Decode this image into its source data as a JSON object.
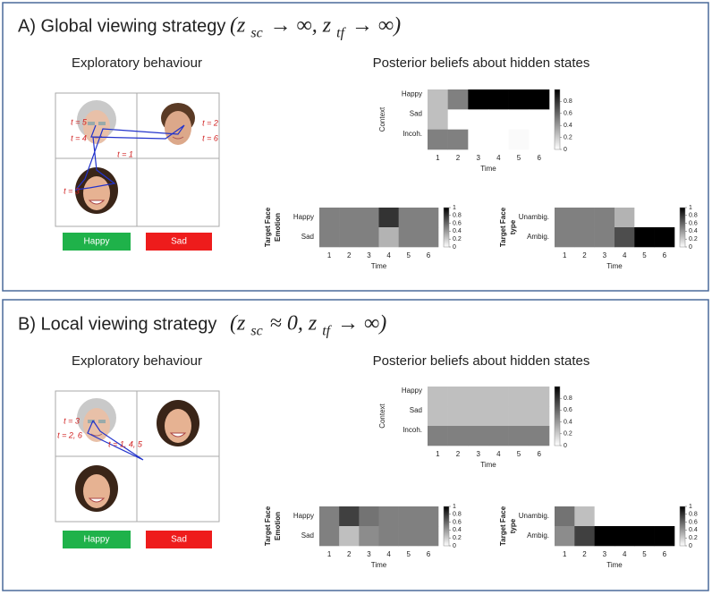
{
  "panels": [
    {
      "title": "A) Global viewing strategy",
      "formula": [
        "(z",
        "sc",
        "→ ∞, z",
        "tf",
        "→ ∞)"
      ],
      "left_heading": "Exploratory behaviour",
      "right_heading": "Posterior beliefs about hidden states",
      "time_labels": [
        "t = 5",
        "t = 4",
        "t = 2",
        "t = 6",
        "t = 1",
        "t = 3"
      ],
      "buttons": [
        "Happy",
        "Sad"
      ]
    },
    {
      "title": "B) Local viewing strategy",
      "formula": [
        "(z",
        "sc",
        "≈ 0, z",
        "tf",
        "→ ∞)"
      ],
      "left_heading": "Exploratory behaviour",
      "right_heading": "Posterior beliefs about hidden states",
      "time_labels": [
        "t = 3",
        "t = 2, 6",
        "t = 1, 4, 5"
      ],
      "buttons": [
        "Happy",
        "Sad"
      ]
    }
  ],
  "chart_data": [
    {
      "type": "heatmap",
      "ylabel": [
        "Context"
      ],
      "xlabel": "Time",
      "categories": [
        1,
        2,
        3,
        4,
        5,
        6
      ],
      "rows": [
        "Happy",
        "Sad",
        "Incoh."
      ],
      "values": [
        [
          0.25,
          0.5,
          1,
          1,
          1,
          1
        ],
        [
          0.25,
          0,
          0,
          0,
          0,
          0
        ],
        [
          0.5,
          0.5,
          0,
          0,
          0.02,
          0
        ]
      ],
      "colorbar_lim": [
        0,
        1
      ],
      "colorbar_ticks": [
        0,
        0.2,
        0.4,
        0.6,
        0.8
      ]
    },
    {
      "type": "heatmap",
      "ylabel": [
        "Target Face",
        "Emotion"
      ],
      "xlabel": "Time",
      "categories": [
        1,
        2,
        3,
        4,
        5,
        6
      ],
      "rows": [
        "Happy",
        "Sad"
      ],
      "values": [
        [
          0.5,
          0.5,
          0.5,
          0.8,
          0.5,
          0.5
        ],
        [
          0.5,
          0.5,
          0.5,
          0.3,
          0.5,
          0.5
        ]
      ],
      "colorbar_lim": [
        0,
        1
      ],
      "colorbar_ticks": [
        0,
        0.2,
        0.4,
        0.6,
        0.8,
        1
      ]
    },
    {
      "type": "heatmap",
      "ylabel": [
        "Target Face",
        "type"
      ],
      "xlabel": "Time",
      "categories": [
        1,
        2,
        3,
        4,
        5,
        6
      ],
      "rows": [
        "Unambig.",
        "Ambig."
      ],
      "values": [
        [
          0.5,
          0.5,
          0.5,
          0.3,
          0,
          0
        ],
        [
          0.5,
          0.5,
          0.5,
          0.7,
          1,
          1
        ]
      ],
      "colorbar_lim": [
        0,
        1
      ],
      "colorbar_ticks": [
        0,
        0.2,
        0.4,
        0.6,
        0.8,
        1
      ]
    },
    {
      "type": "heatmap",
      "ylabel": [
        "Context"
      ],
      "xlabel": "Time",
      "categories": [
        1,
        2,
        3,
        4,
        5,
        6
      ],
      "rows": [
        "Happy",
        "Sad",
        "Incoh."
      ],
      "values": [
        [
          0.25,
          0.25,
          0.25,
          0.25,
          0.25,
          0.25
        ],
        [
          0.25,
          0.25,
          0.25,
          0.25,
          0.25,
          0.25
        ],
        [
          0.5,
          0.5,
          0.5,
          0.5,
          0.5,
          0.5
        ]
      ],
      "colorbar_lim": [
        0,
        1
      ],
      "colorbar_ticks": [
        0,
        0.2,
        0.4,
        0.6,
        0.8
      ]
    },
    {
      "type": "heatmap",
      "ylabel": [
        "Target Face",
        "Emotion"
      ],
      "xlabel": "Time",
      "categories": [
        1,
        2,
        3,
        4,
        5,
        6
      ],
      "rows": [
        "Happy",
        "Sad"
      ],
      "values": [
        [
          0.5,
          0.75,
          0.55,
          0.5,
          0.5,
          0.5
        ],
        [
          0.5,
          0.25,
          0.45,
          0.5,
          0.5,
          0.5
        ]
      ],
      "colorbar_lim": [
        0,
        1
      ],
      "colorbar_ticks": [
        0,
        0.2,
        0.4,
        0.6,
        0.8,
        1
      ]
    },
    {
      "type": "heatmap",
      "ylabel": [
        "Target Face",
        "type"
      ],
      "xlabel": "Time",
      "categories": [
        1,
        2,
        3,
        4,
        5,
        6
      ],
      "rows": [
        "Unambig.",
        "Ambig."
      ],
      "values": [
        [
          0.55,
          0.25,
          0,
          0,
          0,
          0
        ],
        [
          0.45,
          0.75,
          1,
          1,
          1,
          1
        ]
      ],
      "colorbar_lim": [
        0,
        1
      ],
      "colorbar_ticks": [
        0,
        0.2,
        0.4,
        0.6,
        0.8,
        1
      ]
    }
  ]
}
